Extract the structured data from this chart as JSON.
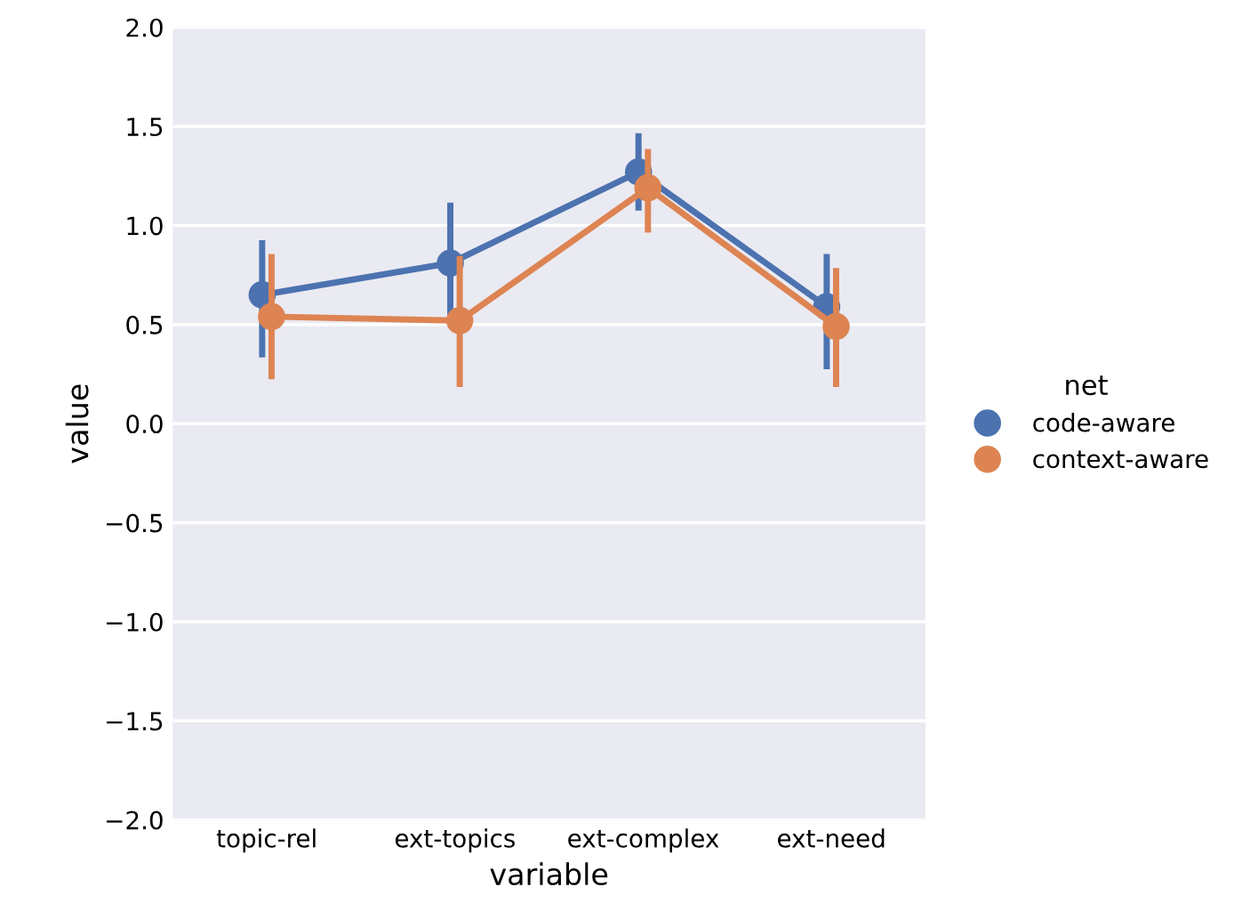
{
  "chart_data": {
    "type": "line",
    "xlabel": "variable",
    "ylabel": "value",
    "legend_title": "net",
    "categories": [
      "topic-rel",
      "ext-topics",
      "ext-complex",
      "ext-need"
    ],
    "series": [
      {
        "name": "code-aware",
        "color": "#4c72b0",
        "values": [
          0.65,
          0.81,
          1.27,
          0.59
        ],
        "errors": [
          [
            0.35,
            0.91
          ],
          [
            0.55,
            1.1
          ],
          [
            1.09,
            1.45
          ],
          [
            0.29,
            0.84
          ]
        ]
      },
      {
        "name": "context-aware",
        "color": "#dd8452",
        "values": [
          0.54,
          0.52,
          1.19,
          0.49
        ],
        "errors": [
          [
            0.24,
            0.84
          ],
          [
            0.2,
            0.83
          ],
          [
            0.98,
            1.37
          ],
          [
            0.2,
            0.77
          ]
        ]
      }
    ],
    "ylim": [
      -2.0,
      2.0
    ],
    "yticks": [
      {
        "value": -2,
        "label": "−2.0"
      },
      {
        "value": -1.5,
        "label": "−1.5"
      },
      {
        "value": -1,
        "label": "−1.0"
      },
      {
        "value": -0.5,
        "label": "−0.5"
      },
      {
        "value": 0,
        "label": "0.0"
      },
      {
        "value": 0.5,
        "label": "0.5"
      },
      {
        "value": 1,
        "label": "1.0"
      },
      {
        "value": 1.5,
        "label": "1.5"
      },
      {
        "value": 2,
        "label": "2.0"
      }
    ],
    "grid": "y",
    "legend": "right",
    "marker": "circle",
    "line_style": "solid"
  }
}
